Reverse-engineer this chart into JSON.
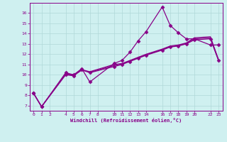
{
  "title": "",
  "xlabel": "Windchill (Refroidissement éolien,°C)",
  "bg_color": "#cff0f0",
  "grid_color": "#b0d8d8",
  "line_color": "#880088",
  "xlim": [
    -0.5,
    23.5
  ],
  "ylim": [
    6.5,
    17.0
  ],
  "xticks": [
    0,
    1,
    2,
    4,
    5,
    6,
    7,
    8,
    10,
    11,
    12,
    13,
    14,
    16,
    17,
    18,
    19,
    20,
    22,
    23
  ],
  "yticks": [
    7,
    8,
    9,
    10,
    11,
    12,
    13,
    14,
    15,
    16
  ],
  "series": [
    {
      "x": [
        0,
        1,
        4,
        5,
        6,
        7,
        10,
        11,
        12,
        13,
        14,
        16,
        17,
        18,
        19,
        20,
        22,
        23
      ],
      "y": [
        8.2,
        6.9,
        10.2,
        10.0,
        10.6,
        9.3,
        11.1,
        11.4,
        12.2,
        13.3,
        14.2,
        16.6,
        14.8,
        14.1,
        13.5,
        13.5,
        12.9,
        12.9
      ],
      "marker": "D",
      "markersize": 2.5,
      "linewidth": 0.9,
      "zorder": 5
    },
    {
      "x": [
        0,
        1,
        4,
        5,
        6,
        7,
        10,
        11,
        12,
        13,
        14,
        16,
        17,
        18,
        19,
        20,
        22,
        23
      ],
      "y": [
        8.2,
        6.9,
        10.0,
        9.9,
        10.5,
        10.2,
        10.8,
        11.0,
        11.3,
        11.6,
        11.9,
        12.4,
        12.7,
        12.8,
        13.0,
        13.4,
        13.5,
        11.4
      ],
      "marker": "D",
      "markersize": 2.5,
      "linewidth": 0.9,
      "zorder": 4
    },
    {
      "x": [
        0,
        1,
        4,
        5,
        6,
        7,
        10,
        11,
        12,
        13,
        14,
        16,
        17,
        18,
        19,
        20,
        22,
        23
      ],
      "y": [
        8.2,
        6.9,
        10.1,
        10.0,
        10.5,
        10.3,
        11.0,
        11.1,
        11.4,
        11.7,
        12.0,
        12.5,
        12.8,
        12.9,
        13.1,
        13.6,
        13.7,
        11.5
      ],
      "marker": null,
      "markersize": 0,
      "linewidth": 0.9,
      "zorder": 3
    },
    {
      "x": [
        0,
        1,
        4,
        5,
        6,
        7,
        10,
        11,
        12,
        13,
        14,
        16,
        17,
        18,
        19,
        20,
        22,
        23
      ],
      "y": [
        8.2,
        6.9,
        10.05,
        9.95,
        10.45,
        10.25,
        10.9,
        11.05,
        11.35,
        11.65,
        11.95,
        12.45,
        12.75,
        12.85,
        13.05,
        13.5,
        13.6,
        11.45
      ],
      "marker": null,
      "markersize": 0,
      "linewidth": 0.9,
      "zorder": 2
    }
  ]
}
